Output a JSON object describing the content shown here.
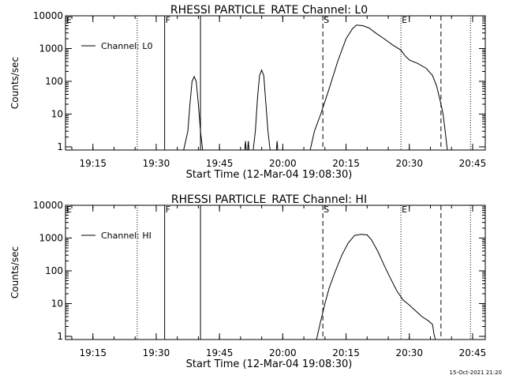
{
  "footer": {
    "timestamp": "15-Oct-2021 21:20"
  },
  "chart_data": [
    {
      "type": "line",
      "title": "RHESSI PARTICLE_RATE Channel: L0",
      "xlabel": "Start Time (12-Mar-04 19:08:30)",
      "ylabel": "Counts/sec",
      "y_scale": "log",
      "xlim": [
        "19:08:30",
        "20:48:00"
      ],
      "ylim": [
        0.8,
        10000
      ],
      "x_ticks": [
        "19:15",
        "19:30",
        "19:45",
        "20:00",
        "20:15",
        "20:30",
        "20:45"
      ],
      "y_ticks": [
        "1",
        "10",
        "100",
        "1000",
        "10000"
      ],
      "legend": {
        "position": "top-left",
        "entries": [
          "Channel: L0"
        ]
      },
      "markers": [
        {
          "time": "19:08:30",
          "style": "dotted",
          "label": "E"
        },
        {
          "time": "19:25:30",
          "style": "dotted",
          "label": ""
        },
        {
          "time": "19:32:00",
          "style": "solid",
          "label": "F"
        },
        {
          "time": "19:40:30",
          "style": "solid",
          "label": ""
        },
        {
          "time": "20:09:30",
          "style": "dashed",
          "label": "S"
        },
        {
          "time": "20:28:00",
          "style": "dotted",
          "label": "E"
        },
        {
          "time": "20:37:30",
          "style": "dashed",
          "label": ""
        },
        {
          "time": "20:44:30",
          "style": "dotted",
          "label": ""
        }
      ],
      "series": [
        {
          "values": [
            [
              "19:36:30",
              0.8
            ],
            [
              "19:37:30",
              3
            ],
            [
              "19:38:00",
              20
            ],
            [
              "19:38:30",
              100
            ],
            [
              "19:39:00",
              140
            ],
            [
              "19:39:30",
              100
            ],
            [
              "19:40:00",
              20
            ],
            [
              "19:40:30",
              3
            ],
            [
              "19:41:00",
              0.8
            ],
            [
              "19:51:00",
              0.8
            ],
            [
              "19:51:10",
              1.5
            ],
            [
              "19:51:20",
              0.8
            ],
            [
              "19:51:40",
              0.8
            ],
            [
              "19:51:50",
              1.5
            ],
            [
              "19:52:00",
              0.8
            ],
            [
              "19:53:00",
              0.8
            ],
            [
              "19:53:30",
              3
            ],
            [
              "19:54:00",
              30
            ],
            [
              "19:54:30",
              150
            ],
            [
              "19:55:00",
              220
            ],
            [
              "19:55:30",
              150
            ],
            [
              "19:56:00",
              20
            ],
            [
              "19:56:30",
              3
            ],
            [
              "19:57:00",
              0.8
            ],
            [
              "19:58:30",
              0.8
            ],
            [
              "19:58:40",
              1.5
            ],
            [
              "19:58:50",
              0.8
            ],
            [
              "20:06:30",
              0.8
            ],
            [
              "20:07:30",
              3
            ],
            [
              "20:09:00",
              10
            ],
            [
              "20:11:00",
              60
            ],
            [
              "20:13:00",
              400
            ],
            [
              "20:15:00",
              2000
            ],
            [
              "20:16:30",
              4000
            ],
            [
              "20:17:30",
              5200
            ],
            [
              "20:19:00",
              5000
            ],
            [
              "20:20:30",
              4200
            ],
            [
              "20:22:00",
              3000
            ],
            [
              "20:24:00",
              2000
            ],
            [
              "20:26:00",
              1300
            ],
            [
              "20:28:00",
              900
            ],
            [
              "20:29:00",
              600
            ],
            [
              "20:30:00",
              450
            ],
            [
              "20:32:00",
              350
            ],
            [
              "20:34:00",
              250
            ],
            [
              "20:35:30",
              150
            ],
            [
              "20:36:30",
              70
            ],
            [
              "20:37:30",
              20
            ],
            [
              "20:38:00",
              10
            ],
            [
              "20:38:30",
              3
            ],
            [
              "20:39:00",
              0.8
            ]
          ]
        }
      ]
    },
    {
      "type": "line",
      "title": "RHESSI PARTICLE_RATE Channel: HI",
      "xlabel": "Start Time (12-Mar-04 19:08:30)",
      "ylabel": "Counts/sec",
      "y_scale": "log",
      "xlim": [
        "19:08:30",
        "20:48:00"
      ],
      "ylim": [
        0.8,
        10000
      ],
      "x_ticks": [
        "19:15",
        "19:30",
        "19:45",
        "20:00",
        "20:15",
        "20:30",
        "20:45"
      ],
      "y_ticks": [
        "1",
        "10",
        "100",
        "1000",
        "10000"
      ],
      "legend": {
        "position": "top-left",
        "entries": [
          "Channel: HI"
        ]
      },
      "markers": [
        {
          "time": "19:08:30",
          "style": "dotted",
          "label": "E"
        },
        {
          "time": "19:25:30",
          "style": "dotted",
          "label": ""
        },
        {
          "time": "19:32:00",
          "style": "solid",
          "label": "F"
        },
        {
          "time": "19:40:30",
          "style": "solid",
          "label": ""
        },
        {
          "time": "20:09:30",
          "style": "dashed",
          "label": "S"
        },
        {
          "time": "20:28:00",
          "style": "dotted",
          "label": "E"
        },
        {
          "time": "20:37:30",
          "style": "dashed",
          "label": ""
        },
        {
          "time": "20:44:30",
          "style": "dotted",
          "label": ""
        }
      ],
      "series": [
        {
          "values": [
            [
              "20:08:00",
              0.8
            ],
            [
              "20:09:00",
              3
            ],
            [
              "20:10:00",
              10
            ],
            [
              "20:11:00",
              30
            ],
            [
              "20:12:30",
              100
            ],
            [
              "20:14:00",
              300
            ],
            [
              "20:15:30",
              700
            ],
            [
              "20:17:00",
              1200
            ],
            [
              "20:18:30",
              1300
            ],
            [
              "20:20:00",
              1250
            ],
            [
              "20:21:00",
              900
            ],
            [
              "20:22:30",
              400
            ],
            [
              "20:24:00",
              150
            ],
            [
              "20:25:30",
              60
            ],
            [
              "20:27:00",
              25
            ],
            [
              "20:28:30",
              13
            ],
            [
              "20:30:00",
              9
            ],
            [
              "20:31:30",
              6
            ],
            [
              "20:33:00",
              4
            ],
            [
              "20:34:30",
              3
            ],
            [
              "20:35:30",
              2.3
            ],
            [
              "20:35:50",
              1.2
            ],
            [
              "20:36:10",
              0.8
            ]
          ]
        }
      ]
    }
  ]
}
